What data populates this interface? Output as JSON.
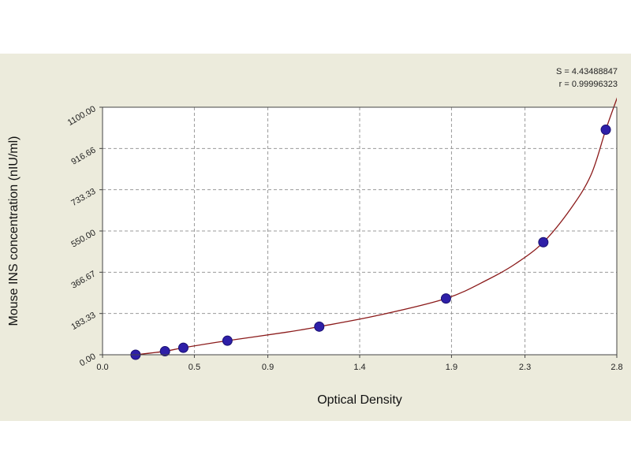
{
  "chart_data": {
    "type": "scatter",
    "title": "",
    "xlabel": "Optical Density",
    "ylabel": "Mouse INS concentration (nIU/ml)",
    "xlim": [
      0.0,
      2.8
    ],
    "ylim": [
      0.0,
      1100.0
    ],
    "x_ticks": [
      0.0,
      0.5,
      0.9,
      1.4,
      1.9,
      2.3,
      2.8
    ],
    "x_tick_labels": [
      "0.0",
      "0.5",
      "0.9",
      "1.4",
      "1.9",
      "2.3",
      "2.8"
    ],
    "y_ticks": [
      0,
      183.33,
      366.67,
      550,
      733.33,
      916.66,
      1100
    ],
    "y_tick_labels": [
      "0.00",
      "183.33",
      "366.67",
      "550.00",
      "733.33",
      "916.66",
      "1100.00"
    ],
    "grid": true,
    "points": {
      "color": "#2e1fa8",
      "x": [
        0.18,
        0.34,
        0.44,
        0.68,
        1.18,
        1.87,
        2.4,
        2.74
      ],
      "y": [
        0,
        15.6,
        31.2,
        62.5,
        125,
        250,
        500,
        1000
      ]
    },
    "fit_curve": {
      "color": "#8b1a1a",
      "x": [
        0.15,
        0.18,
        0.34,
        0.44,
        0.68,
        1.0,
        1.18,
        1.5,
        1.87,
        2.1,
        2.25,
        2.4,
        2.55,
        2.66,
        2.74,
        2.81
      ],
      "y": [
        -2,
        0,
        15.6,
        31.2,
        62.5,
        100,
        125,
        175,
        250,
        335,
        405,
        500,
        650,
        800,
        1000,
        1160
      ]
    },
    "stats": {
      "s": "S = 4.43488847",
      "r": "r = 0.99996323"
    }
  }
}
